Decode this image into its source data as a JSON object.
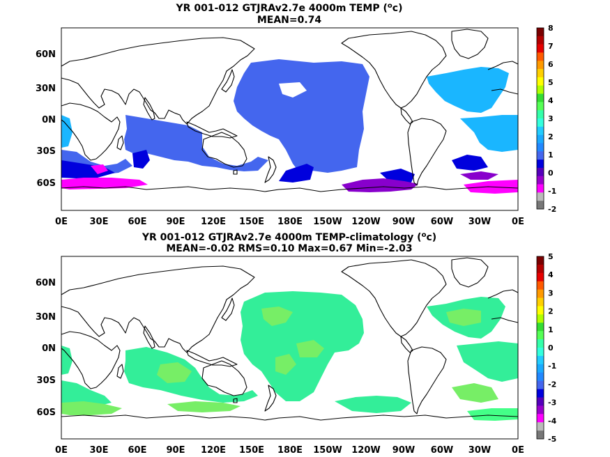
{
  "panels": [
    {
      "title": "YR 001-012 GTJRAv2.7e 4000m TEMP (",
      "title_sup": "o",
      "title_end": "c)",
      "subtitle": "MEAN=0.74",
      "y_ticks": [
        "60N",
        "30N",
        "0N",
        "30S",
        "60S"
      ],
      "x_ticks": [
        "0E",
        "30E",
        "60E",
        "90E",
        "120E",
        "150E",
        "180E",
        "150W",
        "120W",
        "90W",
        "60W",
        "30W",
        "0E"
      ],
      "colorbar": {
        "labels": [
          "8",
          "7",
          "6",
          "5",
          "4",
          "3",
          "2",
          "1",
          "0",
          "-1",
          "-2"
        ],
        "colors": [
          "#7a0000",
          "#b30000",
          "#e60000",
          "#ff5a00",
          "#ff9a00",
          "#ffd000",
          "#ffff00",
          "#b0ff00",
          "#33dd33",
          "#55ff55",
          "#33ffaa",
          "#33ffdd",
          "#22ccff",
          "#1aaaff",
          "#2288ff",
          "#4466ee",
          "#0000dd",
          "#5500bb",
          "#9900cc",
          "#ff00ff",
          "#bbbbbb",
          "#777777"
        ]
      },
      "colors": {
        "c1": "#4466ee",
        "c2": "#1ab6ff",
        "c3": "#0000dd",
        "c4": "#8800cc",
        "c5": "#ff00ff"
      }
    },
    {
      "title": "YR 001-012 GTJRAv2.7e 4000m TEMP-climatology (",
      "title_sup": "o",
      "title_end": "c)",
      "subtitle": "MEAN=-0.02   RMS=0.10   Max=0.67   Min=-2.03",
      "y_ticks": [
        "60N",
        "30N",
        "0N",
        "30S",
        "60S"
      ],
      "x_ticks": [
        "0E",
        "30E",
        "60E",
        "90E",
        "120E",
        "150E",
        "180E",
        "150W",
        "120W",
        "90W",
        "60W",
        "30W",
        "0E"
      ],
      "colorbar": {
        "labels": [
          "5",
          "4",
          "3",
          "2",
          "1",
          "0",
          "-1",
          "-2",
          "-3",
          "-4",
          "-5"
        ],
        "colors": [
          "#7a0000",
          "#b30000",
          "#e60000",
          "#ff5a00",
          "#ff9a00",
          "#ffd000",
          "#ffff00",
          "#b0ff00",
          "#33dd33",
          "#55ff55",
          "#33ffaa",
          "#33ffdd",
          "#22ccff",
          "#1aaaff",
          "#2288ff",
          "#4466ee",
          "#0000dd",
          "#5500bb",
          "#9900cc",
          "#ff00ff",
          "#bbbbbb",
          "#777777"
        ]
      },
      "colors": {
        "g1": "#33ee99",
        "g2": "#77ee66",
        "g3": "#44ff88"
      }
    }
  ]
}
